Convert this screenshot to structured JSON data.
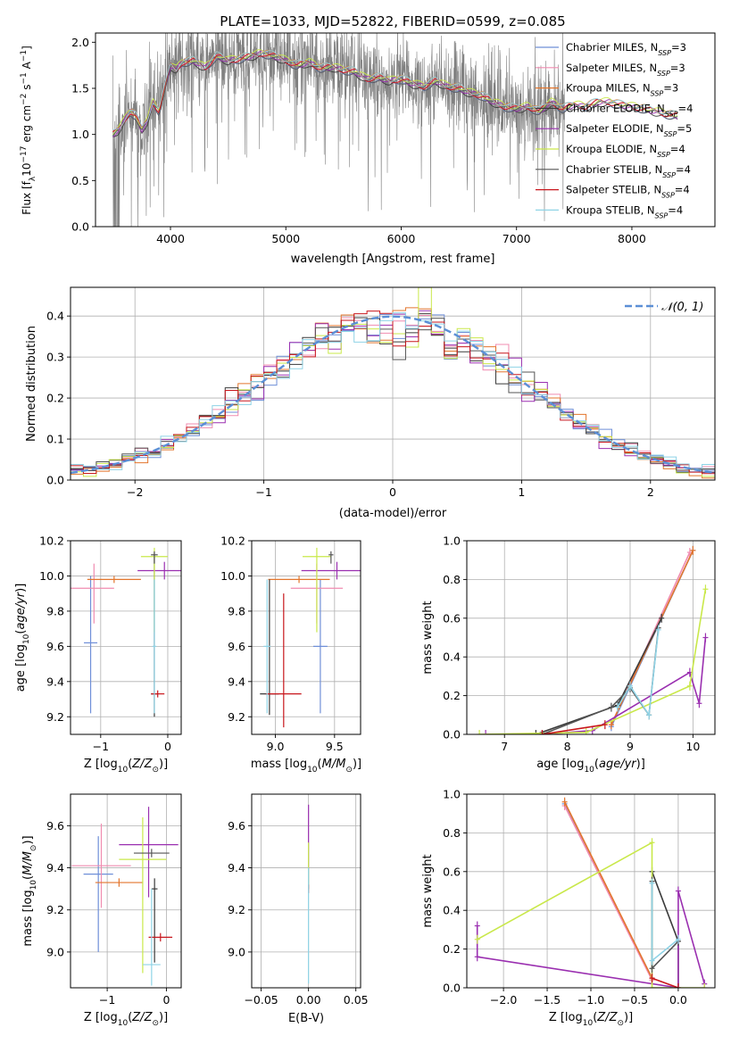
{
  "figure_title": "PLATE=1033, MJD=52822, FIBERID=0599, z=0.085",
  "colors": {
    "Chabrier MILES": "#6f8fd8",
    "Salpeter MILES": "#f08cb0",
    "Kroupa MILES": "#e3762d",
    "Chabrier ELODIE": "#3a3a3a",
    "Salpeter ELODIE": "#9a2fb0",
    "Kroupa ELODIE": "#c9e84a",
    "Chabrier STELIB": "#555555",
    "Salpeter STELIB": "#c8161c",
    "Kroupa STELIB": "#8fd3e6",
    "data": "#808080",
    "normal": "#5b8fd6",
    "grid": "#b0b0b0"
  },
  "chart_data": [
    {
      "panel": "spectrum",
      "type": "line",
      "xlabel": "wavelength [Angstrom, rest frame]",
      "ylabel": "Flux [f_λ 10^-17 erg cm^-2 s^-1 A^-1]",
      "xlim": [
        3350,
        8720
      ],
      "ylim": [
        0,
        2.1
      ],
      "xticks": [
        4000,
        5000,
        6000,
        7000,
        8000
      ],
      "yticks": [
        0.0,
        0.5,
        1.0,
        1.5,
        2.0
      ],
      "grid": false,
      "legend": "top-right",
      "legend_entries": [
        {
          "name": "Chabrier MILES",
          "label": "Chabrier MILES, N",
          "sub": "SSP",
          "tail": "=3"
        },
        {
          "name": "Salpeter MILES",
          "label": "Salpeter MILES, N",
          "sub": "SSP",
          "tail": "=3"
        },
        {
          "name": "Kroupa MILES",
          "label": "Kroupa MILES, N",
          "sub": "SSP",
          "tail": "=3"
        },
        {
          "name": "Chabrier ELODIE",
          "label": "Chabrier ELODIE, N",
          "sub": "SSP",
          "tail": "=4"
        },
        {
          "name": "Salpeter ELODIE",
          "label": "Salpeter ELODIE, N",
          "sub": "SSP",
          "tail": "=5"
        },
        {
          "name": "Kroupa ELODIE",
          "label": "Kroupa ELODIE, N",
          "sub": "SSP",
          "tail": "=4"
        },
        {
          "name": "Chabrier STELIB",
          "label": "Chabrier STELIB, N",
          "sub": "SSP",
          "tail": "=4"
        },
        {
          "name": "Salpeter STELIB",
          "label": "Salpeter STELIB, N",
          "sub": "SSP",
          "tail": "=4"
        },
        {
          "name": "Kroupa STELIB",
          "label": "Kroupa STELIB, N",
          "sub": "SSP",
          "tail": "=4"
        }
      ],
      "model_curve": {
        "x": [
          3500,
          3550,
          3600,
          3650,
          3700,
          3750,
          3800,
          3850,
          3900,
          3950,
          4000,
          4050,
          4100,
          4200,
          4300,
          4400,
          4500,
          4600,
          4700,
          4800,
          4900,
          5000,
          5100,
          5200,
          5300,
          5400,
          5500,
          5600,
          5700,
          5800,
          5900,
          6000,
          6100,
          6200,
          6300,
          6400,
          6500,
          6600,
          6700,
          6800,
          6900,
          7000,
          7100,
          7200,
          7300,
          7400,
          7500,
          7600,
          7700,
          7800,
          7900,
          8000,
          8100,
          8200,
          8300,
          8400
        ],
        "y": [
          1.0,
          1.05,
          1.15,
          1.25,
          1.2,
          1.05,
          1.15,
          1.35,
          1.25,
          1.5,
          1.75,
          1.7,
          1.78,
          1.8,
          1.72,
          1.85,
          1.8,
          1.82,
          1.85,
          1.88,
          1.85,
          1.8,
          1.75,
          1.78,
          1.72,
          1.73,
          1.7,
          1.68,
          1.6,
          1.62,
          1.58,
          1.6,
          1.55,
          1.52,
          1.58,
          1.52,
          1.5,
          1.45,
          1.42,
          1.35,
          1.3,
          1.28,
          1.3,
          1.25,
          1.35,
          1.28,
          1.32,
          1.3,
          1.35,
          1.35,
          1.32,
          1.3,
          1.28,
          1.25,
          1.22,
          1.2
        ]
      }
    },
    {
      "panel": "residuals",
      "type": "line",
      "xlabel": "(data-model)/error",
      "ylabel": "Normed distribution",
      "xlim": [
        -2.5,
        2.5
      ],
      "ylim": [
        0,
        0.47
      ],
      "xticks": [
        -2,
        -1,
        0,
        1,
        2
      ],
      "yticks": [
        0.0,
        0.1,
        0.2,
        0.3,
        0.4
      ],
      "grid": true,
      "legend": "top-right",
      "legend_label": "𝒩(0, 1)",
      "curve": "normal(0,1) pdf",
      "histogram_bins": [
        -2.5,
        2.5,
        50
      ]
    },
    {
      "panel": "age_vs_Z",
      "type": "scatter",
      "xlabel": "Z [log10(Z/Z_⊙)]",
      "ylabel": "age [log10(age/yr)]",
      "xlim": [
        -1.45,
        0.2
      ],
      "ylim": [
        9.1,
        10.2
      ],
      "xticks": [
        -1,
        0
      ],
      "yticks": [
        9.2,
        9.4,
        9.6,
        9.8,
        10.0,
        10.2
      ],
      "grid": true,
      "errorbars": [
        {
          "series": "Chabrier MILES",
          "x": -1.15,
          "xerr": [
            0.1,
            0.1
          ],
          "y": 9.62,
          "yerr": [
            0.4,
            0.38
          ]
        },
        {
          "series": "Salpeter MILES",
          "x": -1.1,
          "xerr": [
            0.35,
            0.3
          ],
          "y": 9.93,
          "yerr": [
            0.2,
            0.14
          ]
        },
        {
          "series": "Kroupa MILES",
          "x": -0.8,
          "xerr": [
            0.4,
            0.4
          ],
          "y": 9.98,
          "yerr": [
            0.02,
            0.02
          ]
        },
        {
          "series": "Chabrier ELODIE",
          "x": -0.2,
          "xerr": [
            0.05,
            0.05
          ],
          "y": 9.33,
          "yerr": [
            0.13,
            0.8
          ]
        },
        {
          "series": "Salpeter ELODIE",
          "x": -0.05,
          "xerr": [
            0.4,
            0.4
          ],
          "y": 10.03,
          "yerr": [
            0.05,
            0.05
          ]
        },
        {
          "series": "Kroupa ELODIE",
          "x": -0.2,
          "xerr": [
            0.2,
            0.2
          ],
          "y": 10.11,
          "yerr": [
            0.43,
            0.05
          ]
        },
        {
          "series": "Chabrier STELIB",
          "x": -0.2,
          "xerr": [
            0.05,
            0.05
          ],
          "y": 10.12,
          "yerr": [
            0.05,
            0.02
          ]
        },
        {
          "series": "Salpeter STELIB",
          "x": -0.15,
          "xerr": [
            0.1,
            0.1
          ],
          "y": 9.33,
          "yerr": [
            0.02,
            0.02
          ]
        },
        {
          "series": "Kroupa STELIB",
          "x": -0.2,
          "xerr": [
            0.03,
            0.03
          ],
          "y": 9.6,
          "yerr": [
            0.38,
            0.38
          ]
        }
      ]
    },
    {
      "panel": "age_vs_mass",
      "type": "scatter",
      "xlabel": "mass [log10(M/M_⊙)]",
      "ylabel": "",
      "xlim": [
        8.8,
        9.72
      ],
      "ylim": [
        9.1,
        10.2
      ],
      "xticks": [
        9.0,
        9.5
      ],
      "yticks": [
        9.2,
        9.4,
        9.6,
        9.8,
        10.0,
        10.2
      ],
      "grid": true,
      "errorbars": [
        {
          "series": "Chabrier MILES",
          "x": 9.38,
          "xerr": [
            0.06,
            0.06
          ],
          "y": 9.6,
          "yerr": [
            0.38,
            0.38
          ]
        },
        {
          "series": "Salpeter MILES",
          "x": 9.35,
          "xerr": [
            0.22,
            0.22
          ],
          "y": 9.93,
          "yerr": [
            0.2,
            0.14
          ]
        },
        {
          "series": "Kroupa MILES",
          "x": 9.2,
          "xerr": [
            0.26,
            0.26
          ],
          "y": 9.98,
          "yerr": [
            0.02,
            0.02
          ]
        },
        {
          "series": "Chabrier ELODIE",
          "x": 8.95,
          "xerr": [
            0.08,
            0.08
          ],
          "y": 9.33,
          "yerr": [
            0.12,
            0.65
          ]
        },
        {
          "series": "Salpeter ELODIE",
          "x": 9.52,
          "xerr": [
            0.3,
            0.3
          ],
          "y": 10.03,
          "yerr": [
            0.05,
            0.05
          ]
        },
        {
          "series": "Kroupa ELODIE",
          "x": 9.35,
          "xerr": [
            0.12,
            0.12
          ],
          "y": 10.11,
          "yerr": [
            0.43,
            0.05
          ]
        },
        {
          "series": "Chabrier STELIB",
          "x": 9.47,
          "xerr": [
            0.02,
            0.02
          ],
          "y": 10.12,
          "yerr": [
            0.05,
            0.02
          ]
        },
        {
          "series": "Salpeter STELIB",
          "x": 9.07,
          "xerr": [
            0.15,
            0.15
          ],
          "y": 9.33,
          "yerr": [
            0.19,
            0.57
          ]
        },
        {
          "series": "Kroupa STELIB",
          "x": 8.93,
          "xerr": [
            0.03,
            0.03
          ],
          "y": 9.6,
          "yerr": [
            0.38,
            0.38
          ]
        }
      ]
    },
    {
      "panel": "weight_vs_age",
      "type": "line",
      "xlabel": "age [log10(age/yr)]",
      "ylabel": "mass weight",
      "xlim": [
        6.4,
        10.35
      ],
      "ylim": [
        0,
        1.0
      ],
      "xticks": [
        7,
        8,
        9,
        10
      ],
      "yticks": [
        0.0,
        0.2,
        0.4,
        0.6,
        0.8,
        1.0
      ],
      "grid": true,
      "series": [
        {
          "name": "Chabrier MILES",
          "x": [
            8.7,
            10.0
          ],
          "y": [
            0.04,
            0.95
          ]
        },
        {
          "name": "Salpeter MILES",
          "x": [
            8.7,
            9.95
          ],
          "y": [
            0.05,
            0.94
          ]
        },
        {
          "name": "Kroupa MILES",
          "x": [
            8.7,
            10.0
          ],
          "y": [
            0.05,
            0.95
          ]
        },
        {
          "name": "Chabrier ELODIE",
          "x": [
            7.5,
            8.8,
            9.5
          ],
          "y": [
            0.0,
            0.15,
            0.6
          ]
        },
        {
          "name": "Salpeter ELODIE",
          "x": [
            6.7,
            7.6,
            8.4,
            9.95,
            10.1,
            10.2
          ],
          "y": [
            0.0,
            0.0,
            0.02,
            0.32,
            0.16,
            0.5
          ]
        },
        {
          "name": "Kroupa ELODIE",
          "x": [
            6.6,
            8.3,
            9.95,
            10.2
          ],
          "y": [
            0.0,
            0.01,
            0.25,
            0.75
          ]
        },
        {
          "name": "Chabrier STELIB",
          "x": [
            7.6,
            8.7,
            9.0,
            9.3,
            9.45
          ],
          "y": [
            0.0,
            0.14,
            0.24,
            0.1,
            0.55
          ]
        },
        {
          "name": "Salpeter STELIB",
          "x": [
            7.6,
            8.6
          ],
          "y": [
            0.0,
            0.05
          ]
        },
        {
          "name": "Kroupa STELIB",
          "x": [
            8.8,
            9.0,
            9.3,
            9.45
          ],
          "y": [
            0.14,
            0.25,
            0.1,
            0.54
          ]
        }
      ]
    },
    {
      "panel": "mass_vs_Z",
      "type": "scatter",
      "xlabel": "Z [log10(Z/Z_⊙)]",
      "ylabel": "mass [log10(M/M_⊙)]",
      "xlim": [
        -1.62,
        0.25
      ],
      "ylim": [
        8.83,
        9.75
      ],
      "xticks": [
        -1,
        0
      ],
      "yticks": [
        9.0,
        9.2,
        9.4,
        9.6
      ],
      "grid": true,
      "errorbars": [
        {
          "series": "Chabrier MILES",
          "x": -1.15,
          "xerr": [
            0.25,
            0.25
          ],
          "y": 9.37,
          "yerr": [
            0.37,
            0.18
          ]
        },
        {
          "series": "Salpeter MILES",
          "x": -1.1,
          "xerr": [
            0.5,
            0.5
          ],
          "y": 9.41,
          "yerr": [
            0.2,
            0.2
          ]
        },
        {
          "series": "Kroupa MILES",
          "x": -0.8,
          "xerr": [
            0.4,
            0.4
          ],
          "y": 9.33,
          "yerr": [
            0.02,
            0.02
          ]
        },
        {
          "series": "Chabrier ELODIE",
          "x": -0.2,
          "xerr": [
            0.05,
            0.05
          ],
          "y": 9.3,
          "yerr": [
            0.35,
            0.05
          ]
        },
        {
          "series": "Salpeter ELODIE",
          "x": -0.3,
          "xerr": [
            0.5,
            0.5
          ],
          "y": 9.51,
          "yerr": [
            0.25,
            0.18
          ]
        },
        {
          "series": "Kroupa ELODIE",
          "x": -0.4,
          "xerr": [
            0.4,
            0.4
          ],
          "y": 9.44,
          "yerr": [
            0.54,
            0.2
          ]
        },
        {
          "series": "Chabrier STELIB",
          "x": -0.25,
          "xerr": [
            0.3,
            0.3
          ],
          "y": 9.47,
          "yerr": [
            0.02,
            0.02
          ]
        },
        {
          "series": "Salpeter STELIB",
          "x": -0.1,
          "xerr": [
            0.2,
            0.2
          ],
          "y": 9.07,
          "yerr": [
            0.02,
            0.02
          ]
        },
        {
          "series": "Kroupa STELIB",
          "x": -0.25,
          "xerr": [
            0.15,
            0.15
          ],
          "y": 8.94,
          "yerr": [
            0.1,
            0.36
          ]
        }
      ]
    },
    {
      "panel": "ebv",
      "type": "scatter",
      "xlabel": "E(B-V)",
      "ylabel": "",
      "xlim": [
        -0.06,
        0.055
      ],
      "ylim": [
        8.83,
        9.75
      ],
      "xticks": [
        -0.05,
        0.0,
        0.05
      ],
      "yticks": [
        9.0,
        9.2,
        9.4,
        9.6
      ],
      "grid": true,
      "errorbars": [
        {
          "series": "Salpeter ELODIE",
          "x": 0.0,
          "xerr": [
            0,
            0
          ],
          "y": 9.45,
          "yerr": [
            0.15,
            0.25
          ]
        },
        {
          "series": "Kroupa ELODIE",
          "x": 0.0,
          "xerr": [
            0,
            0
          ],
          "y": 9.4,
          "yerr": [
            0.1,
            0.12
          ]
        },
        {
          "series": "Salpeter STELIB",
          "x": 0.0,
          "xerr": [
            0,
            0
          ],
          "y": 9.3,
          "yerr": [
            0.02,
            0.02
          ]
        },
        {
          "series": "Kroupa STELIB",
          "x": 0.0,
          "xerr": [
            0,
            0
          ],
          "y": 9.1,
          "yerr": [
            0.25,
            0.3
          ]
        }
      ]
    },
    {
      "panel": "weight_vs_Z",
      "type": "line",
      "xlabel": "Z [log10(Z/Z_⊙)]",
      "ylabel": "mass weight",
      "xlim": [
        -2.42,
        0.42
      ],
      "ylim": [
        0,
        1.0
      ],
      "xticks": [
        -2.0,
        -1.5,
        -1.0,
        -0.5,
        0.0
      ],
      "yticks": [
        0.0,
        0.2,
        0.4,
        0.6,
        0.8,
        1.0
      ],
      "grid": true,
      "series": [
        {
          "name": "Chabrier MILES",
          "x": [
            -1.3,
            -0.3
          ],
          "y": [
            0.95,
            0.05
          ]
        },
        {
          "name": "Salpeter MILES",
          "x": [
            -1.3,
            -0.3
          ],
          "y": [
            0.94,
            0.04
          ]
        },
        {
          "name": "Kroupa MILES",
          "x": [
            -1.3,
            -0.3
          ],
          "y": [
            0.96,
            0.05
          ]
        },
        {
          "name": "Chabrier ELODIE",
          "x": [
            -0.3,
            0.0,
            0.0
          ],
          "y": [
            0.6,
            0.24,
            0.0
          ]
        },
        {
          "name": "Salpeter ELODIE",
          "x": [
            -2.3,
            -2.3,
            0.0,
            0.0,
            0.3
          ],
          "y": [
            0.32,
            0.16,
            0.0,
            0.5,
            0.02
          ]
        },
        {
          "name": "Kroupa ELODIE",
          "x": [
            -2.3,
            -0.3,
            -0.3,
            0.3
          ],
          "y": [
            0.25,
            0.75,
            0.0,
            0.0
          ]
        },
        {
          "name": "Chabrier STELIB",
          "x": [
            -0.3,
            -0.3,
            0.0
          ],
          "y": [
            0.55,
            0.1,
            0.24
          ]
        },
        {
          "name": "Salpeter STELIB",
          "x": [
            -0.3,
            0.0
          ],
          "y": [
            0.05,
            0.0
          ]
        },
        {
          "name": "Kroupa STELIB",
          "x": [
            -0.3,
            -0.3,
            0.0
          ],
          "y": [
            0.54,
            0.14,
            0.25
          ]
        }
      ]
    }
  ]
}
